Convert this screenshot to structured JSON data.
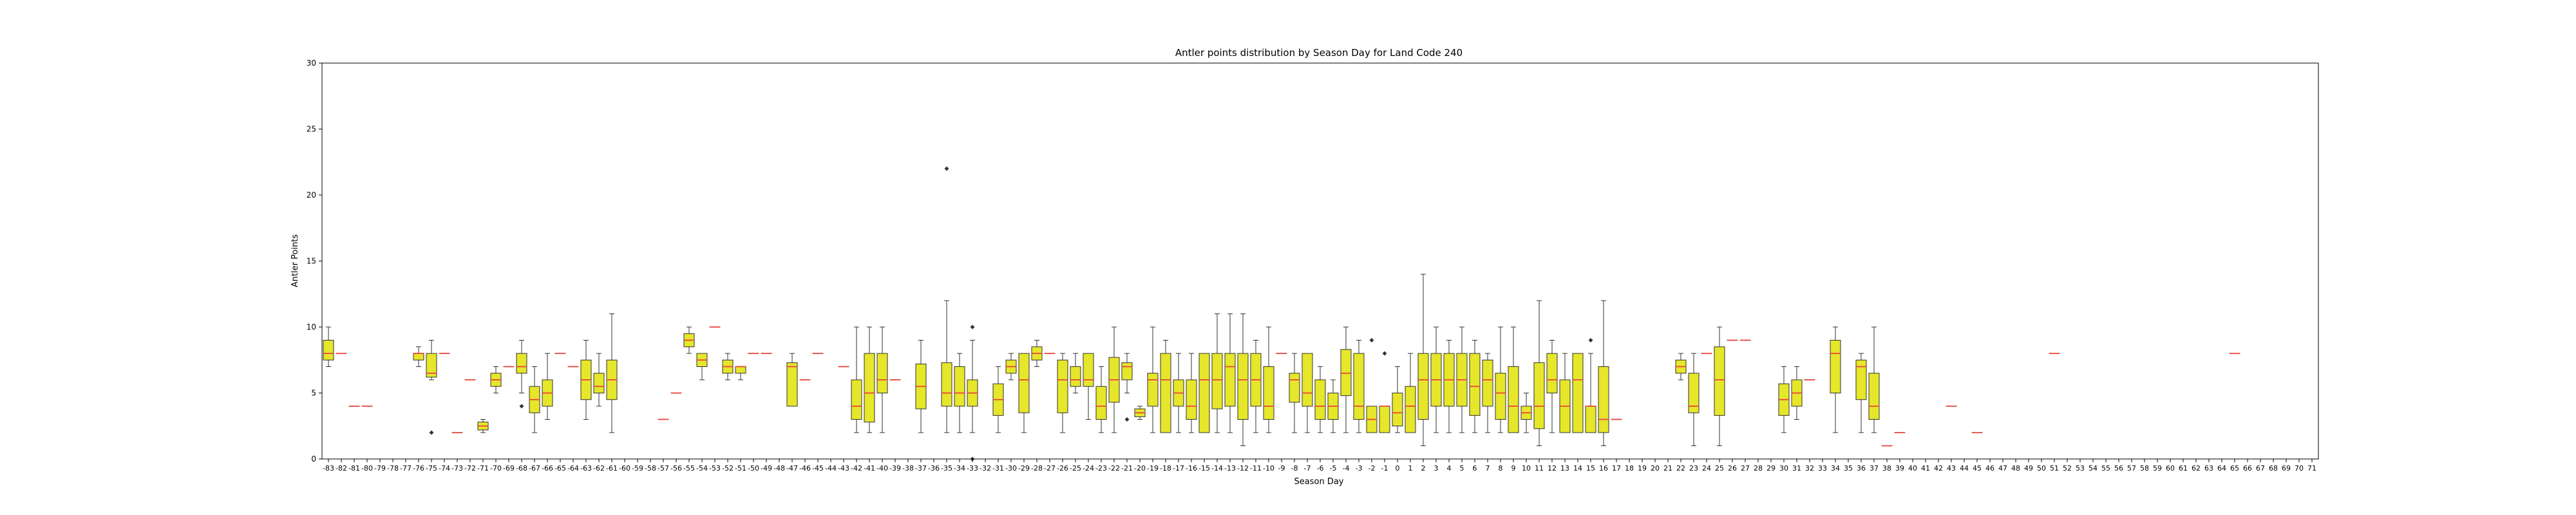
{
  "chart_data": {
    "type": "box",
    "title": "Antler points distribution by Season Day for Land Code 240",
    "xlabel": "Season Day",
    "ylabel": "Antler Points",
    "ylim": [
      0,
      30
    ],
    "yticks": [
      0,
      5,
      10,
      15,
      20,
      25,
      30
    ],
    "xmin": -83,
    "xmax": 71,
    "grid": false,
    "colors": {
      "box_fill": "#e6e62a",
      "median": "#e8463c",
      "edge": "#333333",
      "axis": "#000000"
    },
    "boxes": [
      {
        "day": -83,
        "q1": 7.5,
        "median": 8,
        "q3": 9,
        "whislo": 7,
        "whishi": 10,
        "fliers": []
      },
      {
        "day": -82,
        "q1": 8,
        "median": 8,
        "q3": 8,
        "whislo": 8,
        "whishi": 8,
        "fliers": []
      },
      {
        "day": -81,
        "q1": 4,
        "median": 4,
        "q3": 4,
        "whislo": 4,
        "whishi": 4,
        "fliers": []
      },
      {
        "day": -80,
        "q1": 4,
        "median": 4,
        "q3": 4,
        "whislo": 4,
        "whishi": 4,
        "fliers": []
      },
      {
        "day": -76,
        "q1": 7.5,
        "median": 8,
        "q3": 8,
        "whislo": 7,
        "whishi": 8.5,
        "fliers": []
      },
      {
        "day": -75,
        "q1": 6.2,
        "median": 6.5,
        "q3": 8,
        "whislo": 6,
        "whishi": 9,
        "fliers": [
          2
        ]
      },
      {
        "day": -74,
        "q1": 8,
        "median": 8,
        "q3": 8,
        "whislo": 8,
        "whishi": 8,
        "fliers": []
      },
      {
        "day": -73,
        "q1": 2,
        "median": 2,
        "q3": 2,
        "whislo": 2,
        "whishi": 2,
        "fliers": []
      },
      {
        "day": -72,
        "q1": 6,
        "median": 6,
        "q3": 6,
        "whislo": 6,
        "whishi": 6,
        "fliers": []
      },
      {
        "day": -71,
        "q1": 2.2,
        "median": 2.5,
        "q3": 2.8,
        "whislo": 2,
        "whishi": 3,
        "fliers": []
      },
      {
        "day": -70,
        "q1": 5.5,
        "median": 6,
        "q3": 6.5,
        "whislo": 5,
        "whishi": 7,
        "fliers": []
      },
      {
        "day": -69,
        "q1": 7,
        "median": 7,
        "q3": 7,
        "whislo": 7,
        "whishi": 7,
        "fliers": []
      },
      {
        "day": -68,
        "q1": 6.5,
        "median": 7,
        "q3": 8,
        "whislo": 5,
        "whishi": 9,
        "fliers": [
          4
        ]
      },
      {
        "day": -67,
        "q1": 3.5,
        "median": 4.5,
        "q3": 5.5,
        "whislo": 2,
        "whishi": 7,
        "fliers": []
      },
      {
        "day": -66,
        "q1": 4,
        "median": 5,
        "q3": 6,
        "whislo": 3,
        "whishi": 8,
        "fliers": []
      },
      {
        "day": -65,
        "q1": 8,
        "median": 8,
        "q3": 8,
        "whislo": 8,
        "whishi": 8,
        "fliers": []
      },
      {
        "day": -64,
        "q1": 7,
        "median": 7,
        "q3": 7,
        "whislo": 7,
        "whishi": 7,
        "fliers": []
      },
      {
        "day": -63,
        "q1": 4.5,
        "median": 6,
        "q3": 7.5,
        "whislo": 3,
        "whishi": 9,
        "fliers": []
      },
      {
        "day": -62,
        "q1": 5,
        "median": 5.5,
        "q3": 6.5,
        "whislo": 4,
        "whishi": 8,
        "fliers": []
      },
      {
        "day": -61,
        "q1": 4.5,
        "median": 6,
        "q3": 7.5,
        "whislo": 2,
        "whishi": 11,
        "fliers": []
      },
      {
        "day": -57,
        "q1": 3,
        "median": 3,
        "q3": 3,
        "whislo": 3,
        "whishi": 3,
        "fliers": []
      },
      {
        "day": -56,
        "q1": 5,
        "median": 5,
        "q3": 5,
        "whislo": 5,
        "whishi": 5,
        "fliers": []
      },
      {
        "day": -55,
        "q1": 8.5,
        "median": 9,
        "q3": 9.5,
        "whislo": 8,
        "whishi": 10,
        "fliers": []
      },
      {
        "day": -54,
        "q1": 7,
        "median": 7.5,
        "q3": 8,
        "whislo": 6,
        "whishi": 8,
        "fliers": []
      },
      {
        "day": -53,
        "q1": 10,
        "median": 10,
        "q3": 10,
        "whislo": 10,
        "whishi": 10,
        "fliers": []
      },
      {
        "day": -52,
        "q1": 6.5,
        "median": 7,
        "q3": 7.5,
        "whislo": 6,
        "whishi": 8,
        "fliers": []
      },
      {
        "day": -51,
        "q1": 6.5,
        "median": 7,
        "q3": 7,
        "whislo": 6,
        "whishi": 7,
        "fliers": []
      },
      {
        "day": -50,
        "q1": 8,
        "median": 8,
        "q3": 8,
        "whislo": 8,
        "whishi": 8,
        "fliers": []
      },
      {
        "day": -49,
        "q1": 8,
        "median": 8,
        "q3": 8,
        "whislo": 8,
        "whishi": 8,
        "fliers": []
      },
      {
        "day": -47,
        "q1": 4,
        "median": 7,
        "q3": 7.3,
        "whislo": 4,
        "whishi": 8,
        "fliers": []
      },
      {
        "day": -46,
        "q1": 6,
        "median": 6,
        "q3": 6,
        "whislo": 6,
        "whishi": 6,
        "fliers": []
      },
      {
        "day": -45,
        "q1": 8,
        "median": 8,
        "q3": 8,
        "whislo": 8,
        "whishi": 8,
        "fliers": []
      },
      {
        "day": -43,
        "q1": 7,
        "median": 7,
        "q3": 7,
        "whislo": 7,
        "whishi": 7,
        "fliers": []
      },
      {
        "day": -42,
        "q1": 3,
        "median": 4,
        "q3": 6,
        "whislo": 2,
        "whishi": 10,
        "fliers": []
      },
      {
        "day": -41,
        "q1": 2.8,
        "median": 5,
        "q3": 8,
        "whislo": 2,
        "whishi": 10,
        "fliers": []
      },
      {
        "day": -40,
        "q1": 5,
        "median": 6,
        "q3": 8,
        "whislo": 2,
        "whishi": 10,
        "fliers": []
      },
      {
        "day": -39,
        "q1": 6,
        "median": 6,
        "q3": 6,
        "whislo": 6,
        "whishi": 6,
        "fliers": []
      },
      {
        "day": -37,
        "q1": 3.8,
        "median": 5.5,
        "q3": 7.2,
        "whislo": 2,
        "whishi": 9,
        "fliers": []
      },
      {
        "day": -35,
        "q1": 4,
        "median": 5,
        "q3": 7.3,
        "whislo": 2,
        "whishi": 12,
        "fliers": [
          22
        ]
      },
      {
        "day": -34,
        "q1": 4,
        "median": 5,
        "q3": 7,
        "whislo": 2,
        "whishi": 8,
        "fliers": []
      },
      {
        "day": -33,
        "q1": 4,
        "median": 5,
        "q3": 6,
        "whislo": 2,
        "whishi": 9,
        "fliers": [
          10,
          0
        ]
      },
      {
        "day": -31,
        "q1": 3.3,
        "median": 4.5,
        "q3": 5.7,
        "whislo": 2,
        "whishi": 7,
        "fliers": []
      },
      {
        "day": -30,
        "q1": 6.5,
        "median": 7,
        "q3": 7.5,
        "whislo": 6,
        "whishi": 8,
        "fliers": []
      },
      {
        "day": -29,
        "q1": 3.5,
        "median": 6,
        "q3": 8,
        "whislo": 2,
        "whishi": 8,
        "fliers": []
      },
      {
        "day": -28,
        "q1": 7.5,
        "median": 8,
        "q3": 8.5,
        "whislo": 7,
        "whishi": 9,
        "fliers": []
      },
      {
        "day": -27,
        "q1": 8,
        "median": 8,
        "q3": 8,
        "whislo": 8,
        "whishi": 8,
        "fliers": []
      },
      {
        "day": -26,
        "q1": 3.5,
        "median": 6,
        "q3": 7.5,
        "whislo": 2,
        "whishi": 8,
        "fliers": []
      },
      {
        "day": -25,
        "q1": 5.5,
        "median": 6,
        "q3": 7,
        "whislo": 5,
        "whishi": 8,
        "fliers": []
      },
      {
        "day": -24,
        "q1": 5.5,
        "median": 6,
        "q3": 8,
        "whislo": 3,
        "whishi": 8,
        "fliers": []
      },
      {
        "day": -23,
        "q1": 3,
        "median": 4,
        "q3": 5.5,
        "whislo": 2,
        "whishi": 7,
        "fliers": []
      },
      {
        "day": -22,
        "q1": 4.3,
        "median": 6,
        "q3": 7.7,
        "whislo": 2,
        "whishi": 10,
        "fliers": []
      },
      {
        "day": -21,
        "q1": 6,
        "median": 7,
        "q3": 7.3,
        "whislo": 5,
        "whishi": 8,
        "fliers": [
          3
        ]
      },
      {
        "day": -20,
        "q1": 3.2,
        "median": 3.5,
        "q3": 3.8,
        "whislo": 3,
        "whishi": 4,
        "fliers": []
      },
      {
        "day": -19,
        "q1": 4,
        "median": 6,
        "q3": 6.5,
        "whislo": 2,
        "whishi": 10,
        "fliers": []
      },
      {
        "day": -18,
        "q1": 2,
        "median": 6,
        "q3": 8,
        "whislo": 2,
        "whishi": 9,
        "fliers": []
      },
      {
        "day": -17,
        "q1": 4,
        "median": 5,
        "q3": 6,
        "whislo": 2,
        "whishi": 8,
        "fliers": []
      },
      {
        "day": -16,
        "q1": 3,
        "median": 4,
        "q3": 6,
        "whislo": 2,
        "whishi": 8,
        "fliers": []
      },
      {
        "day": -15,
        "q1": 2,
        "median": 6,
        "q3": 8,
        "whislo": 2,
        "whishi": 8,
        "fliers": []
      },
      {
        "day": -14,
        "q1": 3.8,
        "median": 6,
        "q3": 8,
        "whislo": 2,
        "whishi": 11,
        "fliers": []
      },
      {
        "day": -13,
        "q1": 4,
        "median": 7,
        "q3": 8,
        "whislo": 2,
        "whishi": 11,
        "fliers": []
      },
      {
        "day": -12,
        "q1": 3,
        "median": 6,
        "q3": 8,
        "whislo": 1,
        "whishi": 11,
        "fliers": []
      },
      {
        "day": -11,
        "q1": 4,
        "median": 6,
        "q3": 8,
        "whislo": 2,
        "whishi": 9,
        "fliers": []
      },
      {
        "day": -10,
        "q1": 3,
        "median": 4,
        "q3": 7,
        "whislo": 2,
        "whishi": 10,
        "fliers": []
      },
      {
        "day": -9,
        "q1": 8,
        "median": 8,
        "q3": 8,
        "whislo": 8,
        "whishi": 8,
        "fliers": []
      },
      {
        "day": -8,
        "q1": 4.3,
        "median": 6,
        "q3": 6.5,
        "whislo": 2,
        "whishi": 8,
        "fliers": []
      },
      {
        "day": -7,
        "q1": 4,
        "median": 5,
        "q3": 8,
        "whislo": 2,
        "whishi": 8,
        "fliers": []
      },
      {
        "day": -6,
        "q1": 3,
        "median": 4,
        "q3": 6,
        "whislo": 2,
        "whishi": 7,
        "fliers": []
      },
      {
        "day": -5,
        "q1": 3,
        "median": 4,
        "q3": 5,
        "whislo": 2,
        "whishi": 6,
        "fliers": []
      },
      {
        "day": -4,
        "q1": 4.8,
        "median": 6.5,
        "q3": 8.3,
        "whislo": 2,
        "whishi": 10,
        "fliers": []
      },
      {
        "day": -3,
        "q1": 3,
        "median": 4,
        "q3": 8,
        "whislo": 2,
        "whishi": 9,
        "fliers": []
      },
      {
        "day": -2,
        "q1": 2,
        "median": 3,
        "q3": 4,
        "whislo": 2,
        "whishi": 4,
        "fliers": [
          9
        ]
      },
      {
        "day": -1,
        "q1": 2,
        "median": 4,
        "q3": 4,
        "whislo": 2,
        "whishi": 4,
        "fliers": [
          8
        ]
      },
      {
        "day": 0,
        "q1": 2.5,
        "median": 3.5,
        "q3": 5,
        "whislo": 2,
        "whishi": 7,
        "fliers": []
      },
      {
        "day": 1,
        "q1": 2,
        "median": 4,
        "q3": 5.5,
        "whislo": 2,
        "whishi": 8,
        "fliers": []
      },
      {
        "day": 2,
        "q1": 3,
        "median": 6,
        "q3": 8,
        "whislo": 1,
        "whishi": 14,
        "fliers": []
      },
      {
        "day": 3,
        "q1": 4,
        "median": 6,
        "q3": 8,
        "whislo": 2,
        "whishi": 10,
        "fliers": []
      },
      {
        "day": 4,
        "q1": 4,
        "median": 6,
        "q3": 8,
        "whislo": 2,
        "whishi": 9,
        "fliers": []
      },
      {
        "day": 5,
        "q1": 4,
        "median": 6,
        "q3": 8,
        "whislo": 2,
        "whishi": 10,
        "fliers": []
      },
      {
        "day": 6,
        "q1": 3.3,
        "median": 5.5,
        "q3": 8,
        "whislo": 2,
        "whishi": 9,
        "fliers": []
      },
      {
        "day": 7,
        "q1": 4,
        "median": 6,
        "q3": 7.5,
        "whislo": 2,
        "whishi": 8,
        "fliers": []
      },
      {
        "day": 8,
        "q1": 3,
        "median": 5,
        "q3": 6.5,
        "whislo": 2,
        "whishi": 10,
        "fliers": []
      },
      {
        "day": 9,
        "q1": 2,
        "median": 4,
        "q3": 7,
        "whislo": 2,
        "whishi": 10,
        "fliers": []
      },
      {
        "day": 10,
        "q1": 3,
        "median": 3.5,
        "q3": 4,
        "whislo": 2,
        "whishi": 5,
        "fliers": []
      },
      {
        "day": 11,
        "q1": 2.3,
        "median": 4,
        "q3": 7.3,
        "whislo": 1,
        "whishi": 12,
        "fliers": []
      },
      {
        "day": 12,
        "q1": 5,
        "median": 6,
        "q3": 8,
        "whislo": 2,
        "whishi": 9,
        "fliers": []
      },
      {
        "day": 13,
        "q1": 2,
        "median": 4,
        "q3": 6,
        "whislo": 2,
        "whishi": 8,
        "fliers": []
      },
      {
        "day": 14,
        "q1": 2,
        "median": 6,
        "q3": 8,
        "whislo": 2,
        "whishi": 8,
        "fliers": []
      },
      {
        "day": 15,
        "q1": 2,
        "median": 4,
        "q3": 4,
        "whislo": 2,
        "whishi": 8,
        "fliers": [
          9
        ]
      },
      {
        "day": 16,
        "q1": 2,
        "median": 3,
        "q3": 7,
        "whislo": 1,
        "whishi": 12,
        "fliers": []
      },
      {
        "day": 17,
        "q1": 3,
        "median": 3,
        "q3": 3,
        "whislo": 3,
        "whishi": 3,
        "fliers": []
      },
      {
        "day": 22,
        "q1": 6.5,
        "median": 7,
        "q3": 7.5,
        "whislo": 6,
        "whishi": 8,
        "fliers": []
      },
      {
        "day": 23,
        "q1": 3.5,
        "median": 4,
        "q3": 6.5,
        "whislo": 1,
        "whishi": 8,
        "fliers": []
      },
      {
        "day": 24,
        "q1": 8,
        "median": 8,
        "q3": 8,
        "whislo": 8,
        "whishi": 8,
        "fliers": []
      },
      {
        "day": 25,
        "q1": 3.3,
        "median": 6,
        "q3": 8.5,
        "whislo": 1,
        "whishi": 10,
        "fliers": []
      },
      {
        "day": 26,
        "q1": 9,
        "median": 9,
        "q3": 9,
        "whislo": 9,
        "whishi": 9,
        "fliers": []
      },
      {
        "day": 27,
        "q1": 9,
        "median": 9,
        "q3": 9,
        "whislo": 9,
        "whishi": 9,
        "fliers": []
      },
      {
        "day": 30,
        "q1": 3.3,
        "median": 4.5,
        "q3": 5.7,
        "whislo": 2,
        "whishi": 7,
        "fliers": []
      },
      {
        "day": 31,
        "q1": 4,
        "median": 5,
        "q3": 6,
        "whislo": 3,
        "whishi": 7,
        "fliers": []
      },
      {
        "day": 32,
        "q1": 6,
        "median": 6,
        "q3": 6,
        "whislo": 6,
        "whishi": 6,
        "fliers": []
      },
      {
        "day": 34,
        "q1": 5,
        "median": 8,
        "q3": 9,
        "whislo": 2,
        "whishi": 10,
        "fliers": []
      },
      {
        "day": 36,
        "q1": 4.5,
        "median": 7,
        "q3": 7.5,
        "whislo": 2,
        "whishi": 8,
        "fliers": []
      },
      {
        "day": 37,
        "q1": 3,
        "median": 4,
        "q3": 6.5,
        "whislo": 2,
        "whishi": 10,
        "fliers": []
      },
      {
        "day": 38,
        "q1": 1,
        "median": 1,
        "q3": 1,
        "whislo": 1,
        "whishi": 1,
        "fliers": []
      },
      {
        "day": 39,
        "q1": 2,
        "median": 2,
        "q3": 2,
        "whislo": 2,
        "whishi": 2,
        "fliers": []
      },
      {
        "day": 43,
        "q1": 4,
        "median": 4,
        "q3": 4,
        "whislo": 4,
        "whishi": 4,
        "fliers": []
      },
      {
        "day": 45,
        "q1": 2,
        "median": 2,
        "q3": 2,
        "whislo": 2,
        "whishi": 2,
        "fliers": []
      },
      {
        "day": 51,
        "q1": 8,
        "median": 8,
        "q3": 8,
        "whislo": 8,
        "whishi": 8,
        "fliers": []
      },
      {
        "day": 65,
        "q1": 8,
        "median": 8,
        "q3": 8,
        "whislo": 8,
        "whishi": 8,
        "fliers": []
      }
    ]
  }
}
